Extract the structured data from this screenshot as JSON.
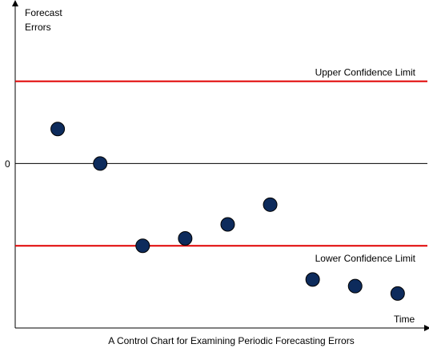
{
  "chart_data": {
    "type": "scatter",
    "title": "A Control Chart for Examining Periodic Forecasting Errors",
    "ylabel_lines": [
      "Forecast",
      "Errors"
    ],
    "xlabel": "Time",
    "y_tick_labels": [
      {
        "value": 0,
        "label": "0"
      }
    ],
    "grid": false,
    "legend": "none",
    "x": [
      1,
      2,
      3,
      4,
      5,
      6,
      7,
      8,
      9
    ],
    "y": [
      0.42,
      0,
      -1.0,
      -0.91,
      -0.74,
      -0.5,
      -1.41,
      -1.49,
      -1.58
    ],
    "xlim": [
      0,
      9.7
    ],
    "ylim": [
      -2.0,
      1.95
    ],
    "reference_lines": [
      {
        "label": "Upper Confidence Limit",
        "value": 1.0,
        "color": "#e00000"
      },
      {
        "label": "Lower Confidence Limit",
        "value": -1.0,
        "color": "#e00000"
      },
      {
        "label": "",
        "value": 0,
        "color": "#000000"
      }
    ],
    "colors": {
      "points": "#0d2b5c",
      "point_outline": "#000000",
      "axis": "#000000"
    }
  }
}
